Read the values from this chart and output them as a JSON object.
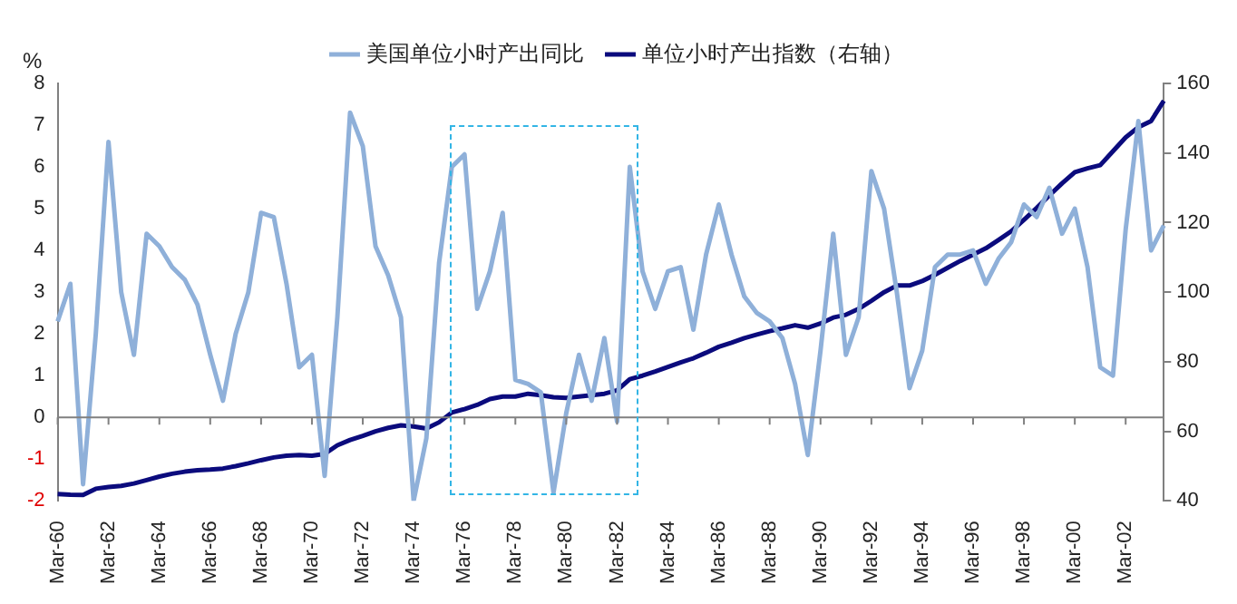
{
  "chart_data": {
    "type": "line",
    "ylabel": "%",
    "categories": [
      "Mar-60",
      null,
      null,
      null,
      "Mar-62",
      null,
      null,
      null,
      "Mar-64",
      null,
      null,
      null,
      "Mar-66",
      null,
      null,
      null,
      "Mar-68",
      null,
      null,
      null,
      "Mar-70",
      null,
      null,
      null,
      "Mar-72",
      null,
      null,
      null,
      "Mar-74",
      null,
      null,
      null,
      "Mar-76",
      null,
      null,
      null,
      "Mar-78",
      null,
      null,
      null,
      "Mar-80",
      null,
      null,
      null,
      "Mar-82",
      null,
      null,
      null,
      "Mar-84",
      null,
      null,
      null,
      "Mar-86",
      null,
      null,
      null,
      "Mar-88",
      null,
      null,
      null,
      "Mar-90",
      null,
      null,
      null,
      "Mar-92",
      null,
      null,
      null,
      "Mar-94",
      null,
      null,
      null,
      "Mar-96",
      null,
      null,
      null,
      "Mar-98",
      null,
      null,
      null,
      "Mar-00",
      null,
      null,
      null,
      "Mar-02",
      null,
      null,
      null
    ],
    "series": [
      {
        "name": "美国单位小时产出同比",
        "color": "#8fb0d9",
        "values": [
          2.3,
          3.2,
          -1.6,
          2.0,
          6.6,
          3.0,
          1.5,
          4.4,
          4.1,
          3.6,
          3.3,
          2.7,
          1.5,
          0.4,
          2.0,
          3.0,
          4.9,
          4.8,
          3.2,
          1.2,
          1.5,
          -1.4,
          2.4,
          7.3,
          6.5,
          4.1,
          3.4,
          2.4,
          -2.0,
          -0.5,
          3.7,
          6.0,
          6.3,
          2.6,
          3.5,
          4.9,
          0.9,
          0.8,
          0.6,
          -1.8,
          0.1,
          1.5,
          0.4,
          1.9,
          -0.1,
          6.0,
          3.5,
          2.6,
          3.5,
          3.6,
          2.1,
          3.9,
          5.1,
          3.9,
          2.9,
          2.5,
          2.3,
          1.9,
          0.8,
          -0.9,
          1.6,
          4.4,
          1.5,
          2.4,
          5.9,
          5.0,
          3.0,
          0.7,
          1.6,
          3.6,
          3.9,
          3.9,
          4.0,
          3.2,
          3.8,
          4.2,
          5.1,
          4.8,
          5.5,
          4.4,
          5.0,
          3.6,
          1.2,
          1.0,
          4.5,
          7.1,
          4.0,
          4.6
        ]
      },
      {
        "name": "单位小时产出指数（右轴）",
        "color": "#0b0b7d",
        "axis": "y2",
        "values": [
          42,
          41.8,
          41.7,
          43.5,
          44,
          44.3,
          45,
          46,
          47,
          47.8,
          48.4,
          48.8,
          49,
          49.3,
          50,
          50.8,
          51.7,
          52.5,
          53,
          53.2,
          53,
          53.5,
          56,
          57.5,
          58.7,
          60,
          61,
          61.7,
          61.4,
          60.8,
          62.6,
          65.4,
          66.4,
          67.6,
          69.3,
          70,
          70,
          70.8,
          70.4,
          69.8,
          69.6,
          70,
          70.4,
          70.8,
          71.8,
          75,
          76,
          77.2,
          78.5,
          79.8,
          81,
          82.6,
          84.3,
          85.5,
          86.8,
          87.8,
          88.8,
          89.6,
          90.5,
          89.8,
          91,
          92.7,
          93.5,
          95.2,
          97.5,
          100,
          101.9,
          101.9,
          103.2,
          105,
          107,
          109,
          110.8,
          112.6,
          115,
          117.5,
          120.8,
          124.2,
          127.8,
          131.3,
          134.5,
          135.6,
          136.5,
          140.5,
          144.5,
          147.4,
          149.2,
          155
        ]
      }
    ],
    "ylim": [
      -2,
      8
    ],
    "yticks": [
      -2,
      -1,
      0,
      1,
      2,
      3,
      4,
      5,
      6,
      7,
      8
    ],
    "y2lim": [
      40,
      160
    ],
    "y2ticks": [
      40,
      60,
      80,
      100,
      120,
      140,
      160
    ],
    "legend": "top"
  }
}
